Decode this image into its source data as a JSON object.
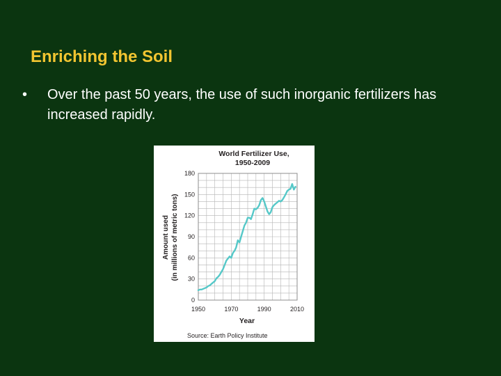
{
  "slide": {
    "title": "Enriching the Soil",
    "bullet_symbol": "•",
    "bullet_text": "Over the past 50 years, the use of such inorganic fertilizers has increased rapidly."
  },
  "colors": {
    "background": "#0b3510",
    "title": "#f2c531",
    "text": "#ffffff",
    "line": "#55c8c8",
    "grid": "#b5b5b5"
  },
  "chart_data": {
    "type": "line",
    "title_lines": [
      "World Fertilizer Use,",
      "1950-2009"
    ],
    "xlabel": "Year",
    "ylabel_lines": [
      "Amount used",
      "(in millions of metric tons)"
    ],
    "source": "Source: Earth Policy Institute",
    "xlim": [
      1950,
      2010
    ],
    "ylim": [
      0,
      180
    ],
    "xticks": [
      1950,
      1970,
      1990,
      2010
    ],
    "yticks": [
      0,
      30,
      60,
      90,
      120,
      150,
      180
    ],
    "grid": true,
    "series": [
      {
        "x": [
          1950,
          1951,
          1952,
          1953,
          1954,
          1955,
          1956,
          1957,
          1958,
          1959,
          1960,
          1961,
          1962,
          1963,
          1964,
          1965,
          1966,
          1967,
          1968,
          1969,
          1970,
          1971,
          1972,
          1973,
          1974,
          1975,
          1976,
          1977,
          1978,
          1979,
          1980,
          1981,
          1982,
          1983,
          1984,
          1985,
          1986,
          1987,
          1988,
          1989,
          1990,
          1991,
          1992,
          1993,
          1994,
          1995,
          1996,
          1997,
          1998,
          1999,
          2000,
          2001,
          2002,
          2003,
          2004,
          2005,
          2006,
          2007,
          2008,
          2009
        ],
        "y": [
          14,
          15,
          15,
          16,
          17,
          18,
          20,
          21,
          23,
          25,
          27,
          31,
          33,
          36,
          40,
          44,
          50,
          56,
          59,
          62,
          60,
          67,
          70,
          75,
          85,
          82,
          90,
          98,
          106,
          110,
          117,
          117,
          115,
          122,
          130,
          129,
          131,
          135,
          142,
          145,
          140,
          133,
          126,
          122,
          125,
          132,
          135,
          137,
          139,
          141,
          140,
          142,
          146,
          150,
          155,
          157,
          158,
          165,
          157,
          161
        ]
      }
    ]
  }
}
